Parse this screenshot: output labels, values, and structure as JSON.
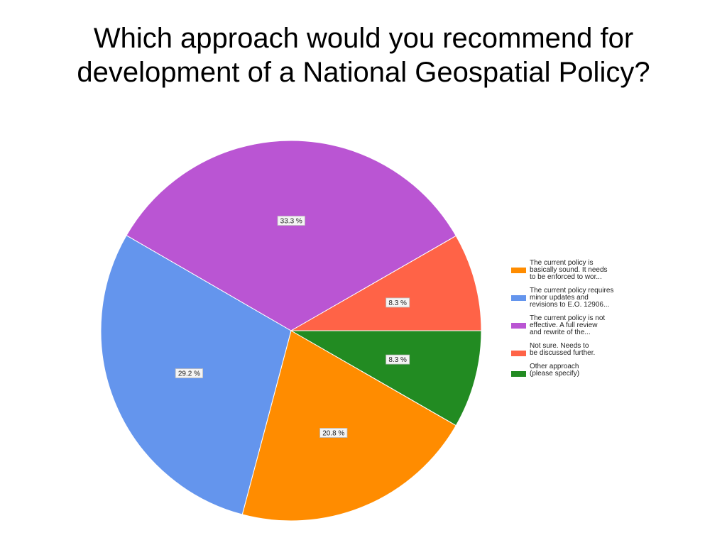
{
  "title": {
    "line1": "Which approach would you recommend for",
    "line2": "development of a National Geospatial Policy?"
  },
  "chart_data": {
    "type": "pie",
    "title": "Which approach would you recommend for development of a National Geospatial Policy?",
    "legend_position": "right",
    "slices": [
      {
        "name": "The current policy is basically sound. It needs to be enforced to wor...",
        "value": 20.8,
        "label": "20.8 %",
        "color": "#FF8C00"
      },
      {
        "name": "The current policy requires minor updates and revisions to E.O. 12906...",
        "value": 29.2,
        "label": "29.2 %",
        "color": "#6495ED"
      },
      {
        "name": "The current policy is not effective. A full review and rewrite of the...",
        "value": 33.3,
        "label": "33.3 %",
        "color": "#BA55D3"
      },
      {
        "name": "Not sure.  Needs to be discussed further.",
        "value": 8.3,
        "label": "8.3 %",
        "color": "#FF6347"
      },
      {
        "name": "Other approach (please specify)",
        "value": 8.3,
        "label": "8.3 %",
        "color": "#228B22"
      }
    ]
  },
  "legend": {
    "items": [
      {
        "label": "The current policy is\nbasically sound. It needs\nto be enforced to wor...",
        "color": "#FF8C00"
      },
      {
        "label": "The current policy requires\nminor updates and\nrevisions to E.O. 12906...",
        "color": "#6495ED"
      },
      {
        "label": "The current policy is not\neffective. A full review\nand rewrite of the...",
        "color": "#BA55D3"
      },
      {
        "label": "Not sure.  Needs to\nbe discussed further.",
        "color": "#FF6347"
      },
      {
        "label": "Other approach\n(please specify)",
        "color": "#228B22"
      }
    ]
  }
}
